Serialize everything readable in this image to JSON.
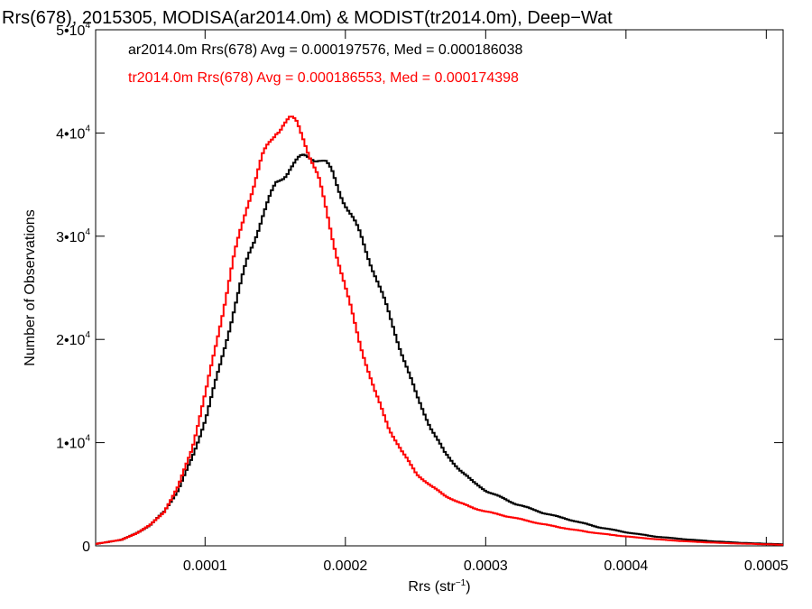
{
  "chart_data": {
    "type": "line",
    "title": "Rrs(678), 2015305, MODISA(ar2014.0m) & MODIST(tr2014.0m), Deep−Wat",
    "xlabel": "Rrs (str",
    "xlabel_sup": "−1",
    "xlabel_close": ")",
    "ylabel": "Number of Observations",
    "xlim": [
      2.2e-05,
      0.000512
    ],
    "ylim": [
      0,
      50000
    ],
    "xticks": [
      {
        "value": 0.0001,
        "label": "0.0001"
      },
      {
        "value": 0.0002,
        "label": "0.0002"
      },
      {
        "value": 0.0003,
        "label": "0.0003"
      },
      {
        "value": 0.0004,
        "label": "0.0004"
      },
      {
        "value": 0.0005,
        "label": "0.0005"
      }
    ],
    "yticks": [
      {
        "value": 0,
        "base": "0",
        "exp": ""
      },
      {
        "value": 10000,
        "base": "1•10",
        "exp": "4"
      },
      {
        "value": 20000,
        "base": "2•10",
        "exp": "4"
      },
      {
        "value": 30000,
        "base": "3•10",
        "exp": "4"
      },
      {
        "value": 40000,
        "base": "4•10",
        "exp": "4"
      },
      {
        "value": 50000,
        "base": "5•10",
        "exp": "4"
      }
    ],
    "grid": false,
    "annotations": [
      {
        "text": "ar2014.0m Rrs(678) Avg = 0.000197576, Med = 0.000186038",
        "color": "#000000"
      },
      {
        "text": "tr2014.0m Rrs(678) Avg = 0.000186553, Med = 0.000174398",
        "color": "#ff0000"
      }
    ],
    "series": [
      {
        "color": "#000000",
        "step": true,
        "x": [
          2.2e-05,
          4e-05,
          5e-05,
          6e-05,
          7e-05,
          8e-05,
          9e-05,
          0.0001,
          0.00011,
          0.00012,
          0.00013,
          0.00014,
          0.00015,
          0.00016,
          0.00017,
          0.000175,
          0.00018,
          0.000185,
          0.00019,
          0.0002,
          0.00021,
          0.00022,
          0.00023,
          0.00024,
          0.00025,
          0.00026,
          0.00027,
          0.00028,
          0.00029,
          0.0003,
          0.00032,
          0.00034,
          0.00036,
          0.00038,
          0.0004,
          0.00042,
          0.00044,
          0.00046,
          0.00048,
          0.0005,
          0.000512
        ],
        "y": [
          200,
          600,
          1200,
          2000,
          3300,
          5400,
          8500,
          12500,
          17500,
          23000,
          28000,
          32000,
          35000,
          36800,
          37600,
          37800,
          37600,
          37000,
          36000,
          33000,
          30000,
          26500,
          22500,
          18500,
          14500,
          11500,
          9000,
          7500,
          6200,
          5300,
          4100,
          3200,
          2500,
          1800,
          1300,
          900,
          650,
          450,
          300,
          200,
          150
        ]
      },
      {
        "color": "#ff0000",
        "step": true,
        "x": [
          2.2e-05,
          4e-05,
          5e-05,
          6e-05,
          7e-05,
          8e-05,
          9e-05,
          0.0001,
          0.00011,
          0.00012,
          0.00013,
          0.00014,
          0.00015,
          0.000155,
          0.00016,
          0.000165,
          0.00017,
          0.00018,
          0.00019,
          0.0002,
          0.00021,
          0.00022,
          0.00023,
          0.00024,
          0.00025,
          0.00026,
          0.00027,
          0.00028,
          0.00029,
          0.0003,
          0.00032,
          0.00034,
          0.00036,
          0.00038,
          0.0004,
          0.00042,
          0.00044,
          0.00046,
          0.00048,
          0.0005,
          0.000512
        ],
        "y": [
          200,
          600,
          1200,
          2000,
          3300,
          5700,
          9500,
          15000,
          21500,
          28000,
          33500,
          37500,
          40300,
          41000,
          41200,
          40800,
          39500,
          35500,
          30000,
          24500,
          19500,
          15000,
          11500,
          9000,
          7000,
          5800,
          4900,
          4200,
          3700,
          3300,
          2700,
          2100,
          1600,
          1200,
          900,
          650,
          450,
          320,
          220,
          150,
          100
        ]
      }
    ]
  }
}
